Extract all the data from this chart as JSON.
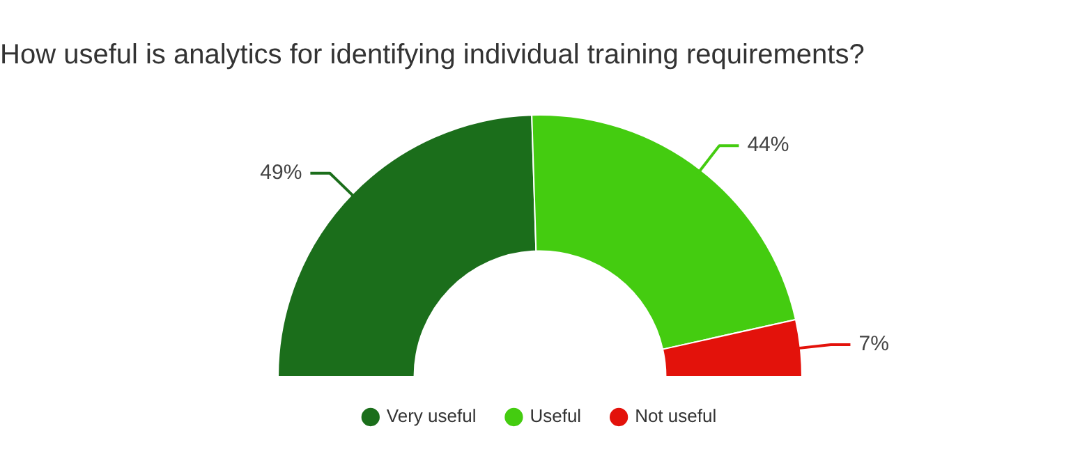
{
  "chart_data": {
    "type": "donut",
    "title": "How useful is analytics for identifying individual training requirements?",
    "categories": [
      "Very useful",
      "Useful",
      "Not useful"
    ],
    "values": [
      49,
      44,
      7
    ],
    "colors": [
      "#1b6e1b",
      "#44cc10",
      "#e3120b"
    ],
    "value_labels": [
      "49%",
      "44%",
      "7%"
    ],
    "legend": "bottom"
  }
}
